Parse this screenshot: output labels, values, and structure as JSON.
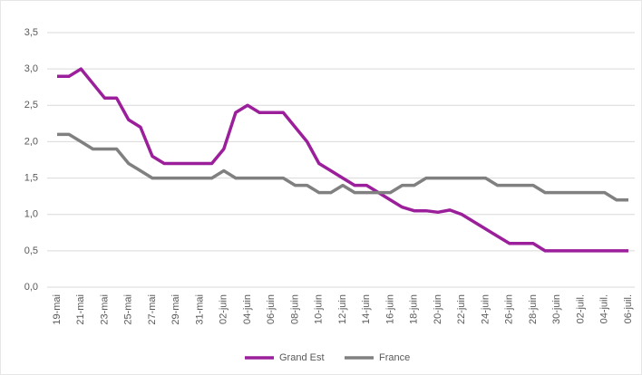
{
  "chart_data": {
    "type": "line",
    "categories": [
      "19-mai",
      null,
      "21-mai",
      null,
      "23-mai",
      null,
      "25-mai",
      null,
      "27-mai",
      null,
      "29-mai",
      null,
      "31-mai",
      null,
      "02-juin",
      null,
      "04-juin",
      null,
      "06-juin",
      null,
      "08-juin",
      null,
      "10-juin",
      null,
      "12-juin",
      null,
      "14-juin",
      null,
      "16-juin",
      null,
      "18-juin",
      null,
      "20-juin",
      null,
      "22-juin",
      null,
      "24-juin",
      null,
      "26-juin",
      null,
      "28-juin",
      null,
      "30-juin",
      null,
      "02-juil.",
      null,
      "04-juil.",
      null,
      "06-juil."
    ],
    "series": [
      {
        "name": "Grand Est",
        "color": "#9b1f9b",
        "values": [
          2.9,
          2.9,
          3.0,
          2.8,
          2.6,
          2.6,
          2.3,
          2.2,
          1.8,
          1.7,
          1.7,
          1.7,
          1.7,
          1.7,
          1.9,
          2.4,
          2.5,
          2.4,
          2.4,
          2.4,
          2.2,
          2.0,
          1.7,
          1.6,
          1.5,
          1.4,
          1.4,
          1.3,
          1.2,
          1.1,
          1.05,
          1.05,
          1.03,
          1.06,
          1.0,
          0.9,
          0.8,
          0.7,
          0.6,
          0.6,
          0.6,
          0.5,
          0.5,
          0.5,
          0.5,
          0.5,
          0.5,
          0.5,
          0.5
        ]
      },
      {
        "name": "France",
        "color": "#808080",
        "values": [
          2.1,
          2.1,
          2.0,
          1.9,
          1.9,
          1.9,
          1.7,
          1.6,
          1.5,
          1.5,
          1.5,
          1.5,
          1.5,
          1.5,
          1.6,
          1.5,
          1.5,
          1.5,
          1.5,
          1.5,
          1.4,
          1.4,
          1.3,
          1.3,
          1.4,
          1.3,
          1.3,
          1.3,
          1.3,
          1.4,
          1.4,
          1.5,
          1.5,
          1.5,
          1.5,
          1.5,
          1.5,
          1.4,
          1.4,
          1.4,
          1.4,
          1.3,
          1.3,
          1.3,
          1.3,
          1.3,
          1.3,
          1.2,
          1.2
        ]
      }
    ],
    "ylim": [
      0,
      3.5
    ],
    "yticks": [
      {
        "value": 0,
        "label": "0,0"
      },
      {
        "value": 0.5,
        "label": "0,5"
      },
      {
        "value": 1,
        "label": "1,0"
      },
      {
        "value": 1.5,
        "label": "1,5"
      },
      {
        "value": 2,
        "label": "2,0"
      },
      {
        "value": 2.5,
        "label": "2,5"
      },
      {
        "value": 3,
        "label": "3,0"
      },
      {
        "value": 3.5,
        "label": "3,5"
      }
    ],
    "grid": true,
    "legend": "bottom"
  }
}
